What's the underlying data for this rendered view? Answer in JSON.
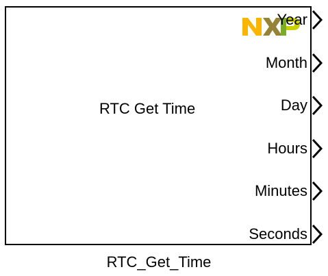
{
  "block": {
    "label": "RTC Get Time",
    "name": "RTC_Get_Time",
    "logo_icon": "nxp-logo-icon",
    "logo_colors": [
      "#F9B500",
      "#958437",
      "#6CA62E",
      "#C9D200"
    ],
    "ports": [
      {
        "label": "Year"
      },
      {
        "label": "Month"
      },
      {
        "label": "Day"
      },
      {
        "label": "Hours"
      },
      {
        "label": "Minutes"
      },
      {
        "label": "Seconds"
      }
    ]
  }
}
